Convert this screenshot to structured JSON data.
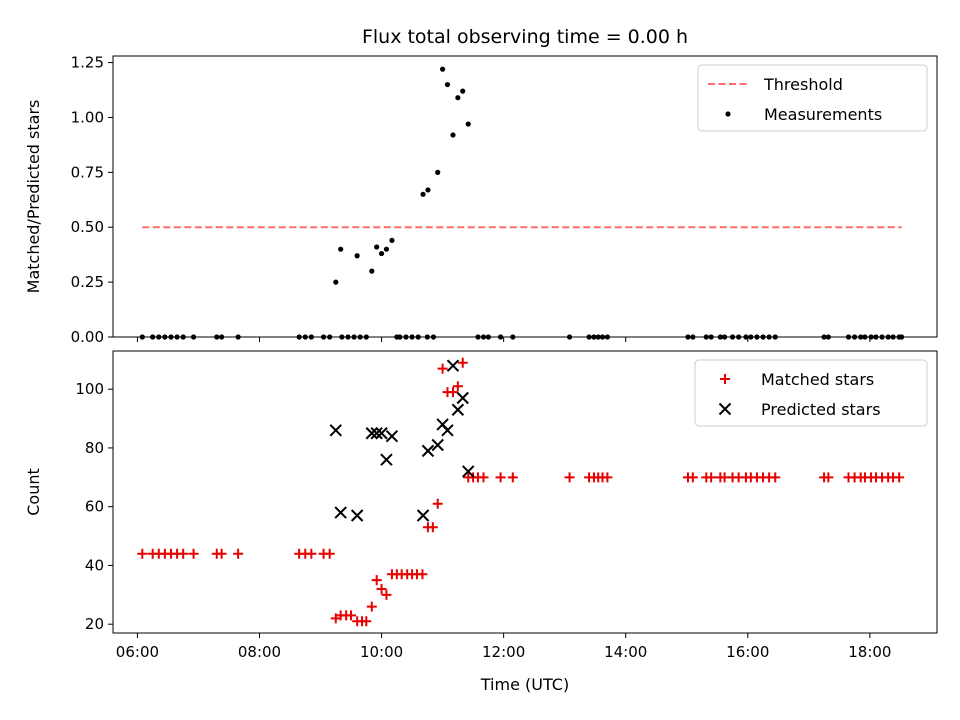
{
  "title": "Flux total observing time = 0.00 h",
  "colors": {
    "threshold": "#ff6b6b",
    "measure": "#000000",
    "matched": "#e60000",
    "predicted": "#000000"
  },
  "chart_data": [
    {
      "type": "scatter",
      "id": "top",
      "ylabel": "Matched/Predicted stars",
      "xlim": [
        5.6,
        19.1
      ],
      "ylim": [
        0,
        1.28
      ],
      "yticks": [
        0.0,
        0.25,
        0.5,
        0.75,
        1.0,
        1.25
      ],
      "ytick_labels": [
        "0.00",
        "0.25",
        "0.50",
        "0.75",
        "1.00",
        "1.25"
      ],
      "xticks": [
        6,
        8,
        10,
        12,
        14,
        16,
        18
      ],
      "legend": {
        "position": "top-right",
        "entries": [
          "Threshold",
          "Measurements"
        ]
      },
      "series": [
        {
          "name": "Threshold",
          "kind": "line",
          "x": [
            6.08,
            18.52
          ],
          "y": [
            0.5,
            0.5
          ]
        },
        {
          "name": "Measurements",
          "kind": "points",
          "x": [
            9.25,
            9.33,
            9.6,
            9.84,
            9.92,
            10.0,
            10.08,
            10.17,
            10.68,
            10.76,
            10.92,
            11.0,
            11.08,
            11.17,
            11.25,
            11.33,
            11.42,
            6.08,
            6.25,
            6.35,
            6.45,
            6.55,
            6.65,
            6.75,
            6.92,
            7.3,
            7.38,
            7.65,
            8.65,
            8.75,
            8.85,
            9.05,
            9.15,
            9.35,
            9.45,
            9.55,
            9.65,
            9.75,
            10.25,
            10.3,
            10.4,
            10.5,
            10.6,
            10.75,
            10.85,
            11.58,
            11.67,
            11.75,
            11.95,
            12.15,
            13.08,
            13.4,
            13.48,
            13.55,
            13.62,
            13.7,
            15.02,
            15.1,
            15.32,
            15.4,
            15.55,
            15.62,
            15.75,
            15.85,
            15.97,
            16.05,
            16.15,
            16.25,
            16.35,
            16.45,
            17.25,
            17.32,
            17.65,
            17.75,
            17.85,
            17.92,
            18.02,
            18.1,
            18.2,
            18.3,
            18.38,
            18.48,
            18.52
          ],
          "y": [
            0.25,
            0.4,
            0.37,
            0.3,
            0.41,
            0.38,
            0.4,
            0.44,
            0.65,
            0.67,
            0.75,
            1.22,
            1.15,
            0.92,
            1.09,
            1.12,
            0.97,
            0,
            0,
            0,
            0,
            0,
            0,
            0,
            0,
            0,
            0,
            0,
            0,
            0,
            0,
            0,
            0,
            0,
            0,
            0,
            0,
            0,
            0,
            0,
            0,
            0,
            0,
            0,
            0,
            0,
            0,
            0,
            0,
            0,
            0,
            0,
            0,
            0,
            0,
            0,
            0,
            0,
            0,
            0,
            0,
            0,
            0,
            0,
            0,
            0,
            0,
            0,
            0,
            0,
            0,
            0,
            0,
            0,
            0,
            0,
            0,
            0,
            0,
            0,
            0,
            0,
            0
          ]
        }
      ]
    },
    {
      "type": "scatter",
      "id": "bottom",
      "xlabel": "Time (UTC)",
      "ylabel": "Count",
      "xlim": [
        5.6,
        19.1
      ],
      "ylim": [
        17,
        113
      ],
      "yticks": [
        20,
        40,
        60,
        80,
        100
      ],
      "ytick_labels": [
        "20",
        "40",
        "60",
        "80",
        "100"
      ],
      "xticks": [
        6,
        8,
        10,
        12,
        14,
        16,
        18
      ],
      "xtick_labels": [
        "06:00",
        "08:00",
        "10:00",
        "12:00",
        "14:00",
        "16:00",
        "18:00"
      ],
      "legend": {
        "position": "top-right",
        "entries": [
          "Matched stars",
          "Predicted stars"
        ]
      },
      "series": [
        {
          "name": "Matched stars",
          "kind": "plus",
          "x": [
            6.08,
            6.25,
            6.35,
            6.45,
            6.55,
            6.65,
            6.75,
            6.92,
            7.3,
            7.38,
            7.65,
            8.65,
            8.75,
            8.85,
            9.05,
            9.15,
            9.25,
            9.33,
            9.42,
            9.5,
            9.6,
            9.68,
            9.75,
            9.84,
            9.92,
            10.0,
            10.08,
            10.17,
            10.25,
            10.33,
            10.42,
            10.5,
            10.58,
            10.67,
            10.76,
            10.84,
            10.92,
            11.0,
            11.08,
            11.17,
            11.25,
            11.33,
            11.42,
            11.5,
            11.58,
            11.67,
            11.95,
            12.15,
            13.08,
            13.4,
            13.48,
            13.55,
            13.62,
            13.7,
            15.02,
            15.1,
            15.32,
            15.4,
            15.55,
            15.62,
            15.75,
            15.85,
            15.97,
            16.05,
            16.15,
            16.25,
            16.35,
            16.45,
            17.25,
            17.32,
            17.65,
            17.75,
            17.85,
            17.92,
            18.02,
            18.1,
            18.2,
            18.3,
            18.38,
            18.48
          ],
          "y": [
            44,
            44,
            44,
            44,
            44,
            44,
            44,
            44,
            44,
            44,
            44,
            44,
            44,
            44,
            44,
            44,
            22,
            23,
            23,
            23,
            21,
            21,
            21,
            26,
            35,
            32,
            30,
            37,
            37,
            37,
            37,
            37,
            37,
            37,
            53,
            53,
            61,
            107,
            99,
            99,
            101,
            109,
            70,
            70,
            70,
            70,
            70,
            70,
            70,
            70,
            70,
            70,
            70,
            70,
            70,
            70,
            70,
            70,
            70,
            70,
            70,
            70,
            70,
            70,
            70,
            70,
            70,
            70,
            70,
            70,
            70,
            70,
            70,
            70,
            70,
            70,
            70,
            70,
            70,
            70
          ]
        },
        {
          "name": "Predicted stars",
          "kind": "x",
          "x": [
            9.25,
            9.33,
            9.6,
            9.84,
            9.92,
            10.0,
            10.08,
            10.17,
            10.68,
            10.76,
            10.92,
            11.0,
            11.08,
            11.17,
            11.25,
            11.33,
            11.42
          ],
          "y": [
            86,
            58,
            57,
            85,
            85,
            85,
            76,
            84,
            57,
            79,
            81,
            88,
            86,
            108,
            93,
            97,
            72
          ]
        }
      ]
    }
  ]
}
